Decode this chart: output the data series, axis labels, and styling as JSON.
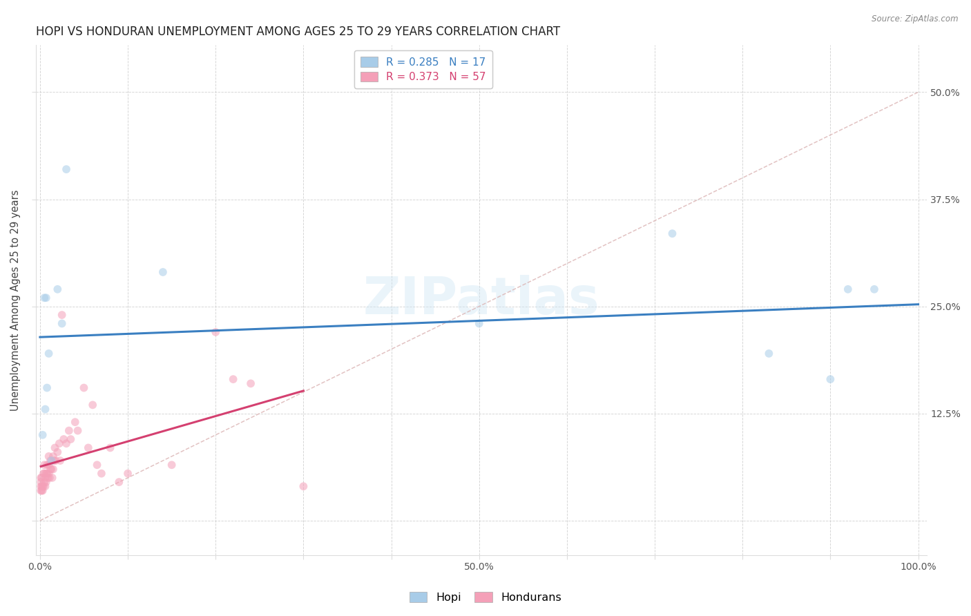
{
  "title": "HOPI VS HONDURAN UNEMPLOYMENT AMONG AGES 25 TO 29 YEARS CORRELATION CHART",
  "source": "Source: ZipAtlas.com",
  "ylabel": "Unemployment Among Ages 25 to 29 years",
  "xlim": [
    -0.005,
    1.01
  ],
  "ylim": [
    -0.04,
    0.555
  ],
  "xtick_positions": [
    0.0,
    0.1,
    0.2,
    0.3,
    0.4,
    0.5,
    0.6,
    0.7,
    0.8,
    0.9,
    1.0
  ],
  "xtick_labels": [
    "0.0%",
    "",
    "",
    "",
    "",
    "50.0%",
    "",
    "",
    "",
    "",
    "100.0%"
  ],
  "ytick_positions": [
    0.0,
    0.125,
    0.25,
    0.375,
    0.5
  ],
  "ytick_labels_right": [
    "",
    "12.5%",
    "25.0%",
    "37.5%",
    "50.0%"
  ],
  "hopi_R": "0.285",
  "hopi_N": "17",
  "honduran_R": "0.373",
  "honduran_N": "57",
  "hopi_scatter_color": "#a8cce8",
  "honduran_scatter_color": "#f4a0b8",
  "hopi_line_color": "#3a7fc1",
  "honduran_line_color": "#d44070",
  "diagonal_color": "#ddb8b8",
  "background_color": "#ffffff",
  "hopi_x": [
    0.003,
    0.005,
    0.007,
    0.008,
    0.01,
    0.013,
    0.025,
    0.03,
    0.14,
    0.5,
    0.72,
    0.83,
    0.9,
    0.92,
    0.95,
    0.006,
    0.02
  ],
  "hopi_y": [
    0.1,
    0.26,
    0.26,
    0.155,
    0.195,
    0.07,
    0.23,
    0.41,
    0.29,
    0.23,
    0.335,
    0.195,
    0.165,
    0.27,
    0.27,
    0.13,
    0.27
  ],
  "honduran_x": [
    0.001,
    0.001,
    0.001,
    0.001,
    0.002,
    0.002,
    0.002,
    0.003,
    0.003,
    0.004,
    0.004,
    0.005,
    0.005,
    0.005,
    0.006,
    0.006,
    0.007,
    0.007,
    0.008,
    0.008,
    0.009,
    0.01,
    0.01,
    0.01,
    0.011,
    0.012,
    0.012,
    0.013,
    0.014,
    0.015,
    0.015,
    0.016,
    0.017,
    0.018,
    0.02,
    0.022,
    0.023,
    0.025,
    0.027,
    0.03,
    0.033,
    0.035,
    0.04,
    0.043,
    0.05,
    0.055,
    0.06,
    0.065,
    0.07,
    0.08,
    0.09,
    0.1,
    0.15,
    0.2,
    0.22,
    0.24,
    0.3
  ],
  "honduran_y": [
    0.035,
    0.04,
    0.045,
    0.05,
    0.035,
    0.04,
    0.05,
    0.035,
    0.04,
    0.04,
    0.055,
    0.045,
    0.055,
    0.065,
    0.04,
    0.05,
    0.045,
    0.055,
    0.055,
    0.065,
    0.05,
    0.055,
    0.065,
    0.075,
    0.05,
    0.06,
    0.07,
    0.06,
    0.05,
    0.06,
    0.075,
    0.07,
    0.085,
    0.07,
    0.08,
    0.09,
    0.07,
    0.24,
    0.095,
    0.09,
    0.105,
    0.095,
    0.115,
    0.105,
    0.155,
    0.085,
    0.135,
    0.065,
    0.055,
    0.085,
    0.045,
    0.055,
    0.065,
    0.22,
    0.165,
    0.16,
    0.04
  ],
  "marker_size": 72,
  "marker_alpha": 0.55,
  "title_fontsize": 12,
  "label_fontsize": 10.5,
  "tick_fontsize": 10,
  "legend_fontsize": 11,
  "watermark": "ZIPatlas"
}
